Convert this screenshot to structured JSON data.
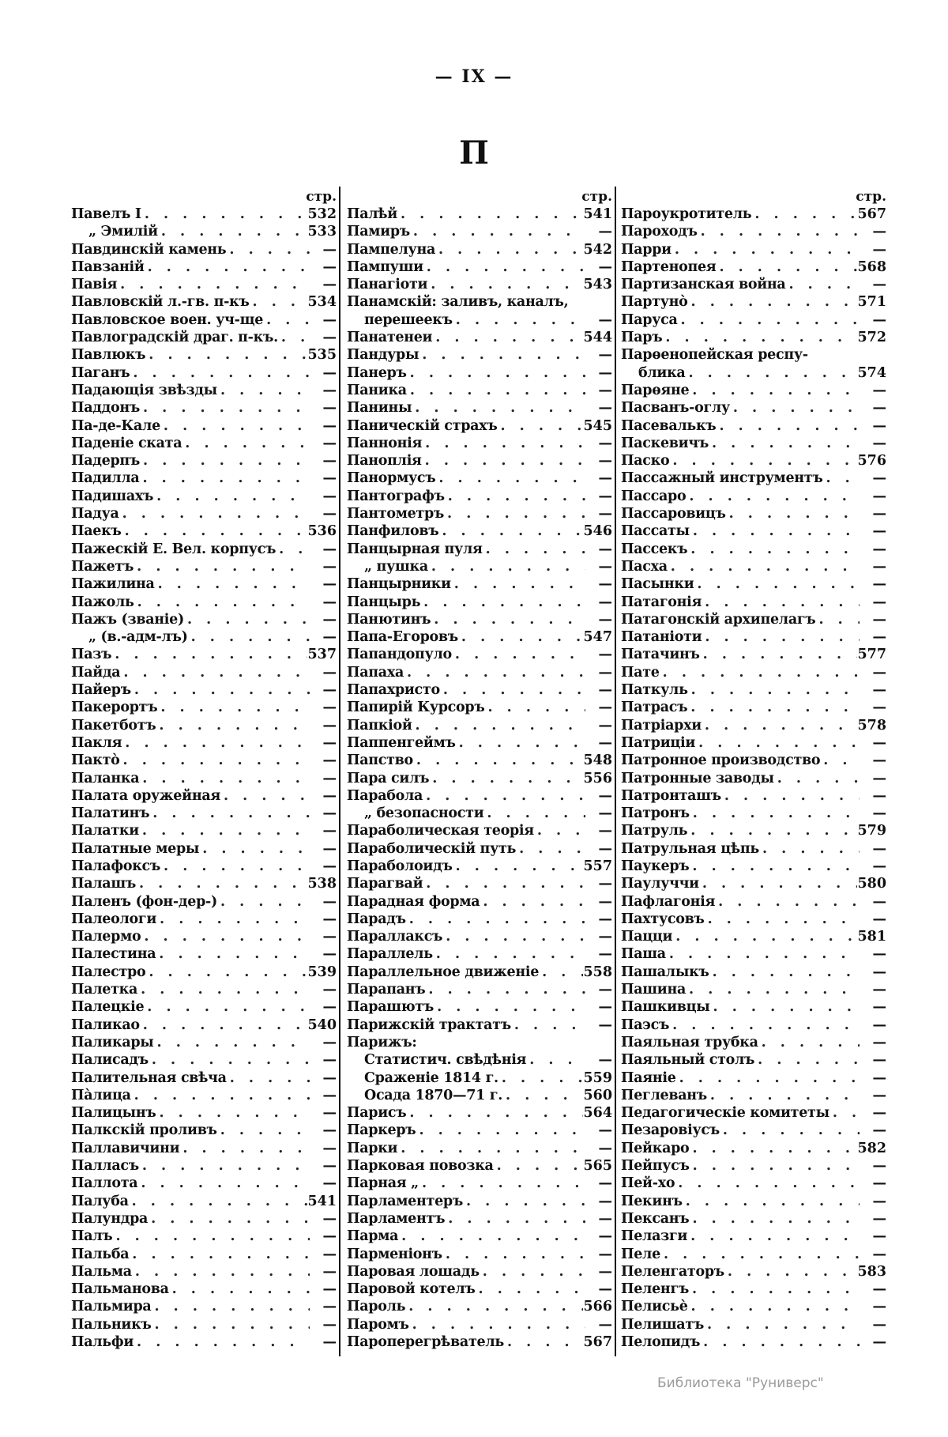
{
  "header": {
    "page_number": "— IX —",
    "section_letter": "П"
  },
  "columns": [
    {
      "label": "стр.",
      "entries": [
        {
          "name": "Павелъ I",
          "page": "532"
        },
        {
          "name": "„ Эмилій",
          "page": "533",
          "level": 1
        },
        {
          "name": "Павдинскій камень",
          "page": "—"
        },
        {
          "name": "Павзаній",
          "page": "—"
        },
        {
          "name": "Павія",
          "page": "—"
        },
        {
          "name": "Павловскій л.-гв. п-къ",
          "page": "534"
        },
        {
          "name": "Павловское воен. уч-ще",
          "page": "—"
        },
        {
          "name": "Павлоградскій драг. п-къ.",
          "page": "—"
        },
        {
          "name": "Павлюкъ",
          "page": "535"
        },
        {
          "name": "Паганъ",
          "page": "—"
        },
        {
          "name": "Падающія звѣзды",
          "page": "—"
        },
        {
          "name": "Паддонъ",
          "page": "—"
        },
        {
          "name": "Па-де-Кале",
          "page": "—"
        },
        {
          "name": "Паденіе ската",
          "page": "—"
        },
        {
          "name": "Падерпъ",
          "page": "—"
        },
        {
          "name": "Падилла",
          "page": "—"
        },
        {
          "name": "Падишахъ",
          "page": "—"
        },
        {
          "name": "Падуа",
          "page": "—"
        },
        {
          "name": "Паекъ",
          "page": "536"
        },
        {
          "name": "Пажескій Е. Вел. корпусъ",
          "page": "—"
        },
        {
          "name": "Пажетъ",
          "page": "—"
        },
        {
          "name": "Пажилина",
          "page": "—"
        },
        {
          "name": "Пажоль",
          "page": "—"
        },
        {
          "name": "Пажъ (званіе)",
          "page": "—"
        },
        {
          "name": "„ (в.-адм-лъ)",
          "page": "—",
          "level": 1
        },
        {
          "name": "Пазъ",
          "page": "537"
        },
        {
          "name": "Пайда",
          "page": "—"
        },
        {
          "name": "Пайеръ",
          "page": "—"
        },
        {
          "name": "Пакерортъ",
          "page": "—"
        },
        {
          "name": "Пакетботъ",
          "page": "—"
        },
        {
          "name": "Пакля",
          "page": "—"
        },
        {
          "name": "Пактò",
          "page": "—"
        },
        {
          "name": "Паланка",
          "page": "—"
        },
        {
          "name": "Палата оружейная",
          "page": "—"
        },
        {
          "name": "Палатинъ",
          "page": "—"
        },
        {
          "name": "Палатки",
          "page": "—"
        },
        {
          "name": "Палатные меры",
          "page": "—"
        },
        {
          "name": "Палафоксъ",
          "page": "—"
        },
        {
          "name": "Палашъ",
          "page": "538"
        },
        {
          "name": "Паленъ (фон-дер-)",
          "page": "—"
        },
        {
          "name": "Палеологи",
          "page": "—"
        },
        {
          "name": "Палермо",
          "page": "—"
        },
        {
          "name": "Палестина",
          "page": "—"
        },
        {
          "name": "Палестро",
          "page": "539"
        },
        {
          "name": "Палетка",
          "page": "—"
        },
        {
          "name": "Палецкіе",
          "page": "—"
        },
        {
          "name": "Паликао",
          "page": "540"
        },
        {
          "name": "Паликары",
          "page": "—"
        },
        {
          "name": "Палисадъ",
          "page": "—"
        },
        {
          "name": "Палительная свѣча",
          "page": "—"
        },
        {
          "name": "Пàлица",
          "page": "—"
        },
        {
          "name": "Палицынъ",
          "page": "—"
        },
        {
          "name": "Палкскій проливъ",
          "page": "—"
        },
        {
          "name": "Паллавичини",
          "page": "—"
        },
        {
          "name": "Палласъ",
          "page": "—"
        },
        {
          "name": "Паллота",
          "page": "—"
        },
        {
          "name": "Палуба",
          "page": "541"
        },
        {
          "name": "Палундра",
          "page": "—"
        },
        {
          "name": "Палъ",
          "page": "—"
        },
        {
          "name": "Пальба",
          "page": "—"
        },
        {
          "name": "Пальма",
          "page": "—"
        },
        {
          "name": "Пальманова",
          "page": "—"
        },
        {
          "name": "Пальмира",
          "page": "—"
        },
        {
          "name": "Пальникъ",
          "page": "—"
        },
        {
          "name": "Пальфи",
          "page": "—"
        }
      ]
    },
    {
      "label": "стр.",
      "entries": [
        {
          "name": "Палѣй",
          "page": "541"
        },
        {
          "name": "Памиръ",
          "page": "—"
        },
        {
          "name": "Пампелуна",
          "page": "542"
        },
        {
          "name": "Пампуши",
          "page": "—"
        },
        {
          "name": "Панагіоти",
          "page": "543"
        },
        {
          "name": "Панамскій: заливъ, каналъ,",
          "page": "",
          "cont": true
        },
        {
          "name": "перешеекъ",
          "page": "—",
          "level": 1
        },
        {
          "name": "Панатенеи",
          "page": "544"
        },
        {
          "name": "Пандуры",
          "page": "—"
        },
        {
          "name": "Панеръ",
          "page": "—"
        },
        {
          "name": "Паника",
          "page": "—"
        },
        {
          "name": "Панины",
          "page": "—"
        },
        {
          "name": "Паническій страхъ",
          "page": "545"
        },
        {
          "name": "Паннонія",
          "page": "—"
        },
        {
          "name": "Паноплія",
          "page": "—"
        },
        {
          "name": "Панормусъ",
          "page": "—"
        },
        {
          "name": "Пантографъ",
          "page": "—"
        },
        {
          "name": "Пантометръ",
          "page": "—"
        },
        {
          "name": "Панфиловъ",
          "page": "546"
        },
        {
          "name": "Панцырная пуля",
          "page": "—"
        },
        {
          "name": "„ пушка",
          "page": "—",
          "level": 1
        },
        {
          "name": "Панцырники",
          "page": "—"
        },
        {
          "name": "Панцырь",
          "page": "—"
        },
        {
          "name": "Панютинъ",
          "page": "—"
        },
        {
          "name": "Папа-Егоровъ",
          "page": "547"
        },
        {
          "name": "Папандопуло",
          "page": "—"
        },
        {
          "name": "Папаха",
          "page": "—"
        },
        {
          "name": "Папахристо",
          "page": "—"
        },
        {
          "name": "Папирій Курсоръ",
          "page": "—"
        },
        {
          "name": "Папкіой",
          "page": "—"
        },
        {
          "name": "Паппенгеймъ",
          "page": "—"
        },
        {
          "name": "Папство",
          "page": "548"
        },
        {
          "name": "Пара силъ",
          "page": "556"
        },
        {
          "name": "Парабола",
          "page": "—"
        },
        {
          "name": "„ безопасности",
          "page": "—",
          "level": 1
        },
        {
          "name": "Параболическая теорія",
          "page": "—"
        },
        {
          "name": "Параболическій путь",
          "page": "—"
        },
        {
          "name": "Параболоидъ",
          "page": "557"
        },
        {
          "name": "Парагвай",
          "page": "—"
        },
        {
          "name": "Парадная форма",
          "page": "—"
        },
        {
          "name": "Парадъ",
          "page": "—"
        },
        {
          "name": "Параллаксъ",
          "page": "—"
        },
        {
          "name": "Параллель",
          "page": "—"
        },
        {
          "name": "Параллельное движеніе",
          "page": "558"
        },
        {
          "name": "Парапанъ",
          "page": "—"
        },
        {
          "name": "Парашютъ",
          "page": "—"
        },
        {
          "name": "Парижскій трактатъ",
          "page": "—"
        },
        {
          "name": "Парижъ:",
          "page": "",
          "cont": true
        },
        {
          "name": "Статистич. свѣдѣнія",
          "page": "—",
          "level": 2
        },
        {
          "name": "Сраженіе 1814 г.",
          "page": "559",
          "level": 2
        },
        {
          "name": "Осада 1870—71 г.",
          "page": "560",
          "level": 2
        },
        {
          "name": "Парисъ",
          "page": "564"
        },
        {
          "name": "Паркеръ",
          "page": "—"
        },
        {
          "name": "Парки",
          "page": "—"
        },
        {
          "name": "Парковая повозка",
          "page": "565"
        },
        {
          "name": "Парная „",
          "page": "—"
        },
        {
          "name": "Парламентеръ",
          "page": "—"
        },
        {
          "name": "Парламентъ",
          "page": "—"
        },
        {
          "name": "Парма",
          "page": "—"
        },
        {
          "name": "Парменіонъ",
          "page": "—"
        },
        {
          "name": "Паровая лошадь",
          "page": "—"
        },
        {
          "name": "Паровой котелъ",
          "page": "—"
        },
        {
          "name": "Пароль",
          "page": "566"
        },
        {
          "name": "Паромъ",
          "page": "—"
        },
        {
          "name": "Пароперегрѣватель",
          "page": "567"
        }
      ]
    },
    {
      "label": "стр.",
      "entries": [
        {
          "name": "Пароукротитель",
          "page": "567"
        },
        {
          "name": "Пароходъ",
          "page": "—"
        },
        {
          "name": "Парри",
          "page": "—"
        },
        {
          "name": "Партенопея",
          "page": "568"
        },
        {
          "name": "Партизанская война",
          "page": "—"
        },
        {
          "name": "Партунò",
          "page": "571"
        },
        {
          "name": "Паруса",
          "page": "—"
        },
        {
          "name": "Паръ",
          "page": "572"
        },
        {
          "name": "Парѳенопейская респу-",
          "page": "",
          "cont": true
        },
        {
          "name": "блика",
          "page": "574",
          "level": 1
        },
        {
          "name": "Парѳяне",
          "page": "—"
        },
        {
          "name": "Пасванъ-оглу",
          "page": "—"
        },
        {
          "name": "Пасевалькъ",
          "page": "—"
        },
        {
          "name": "Паскевичъ",
          "page": "—"
        },
        {
          "name": "Паско",
          "page": "576"
        },
        {
          "name": "Пассажный инструментъ",
          "page": "—"
        },
        {
          "name": "Пассаро",
          "page": "—"
        },
        {
          "name": "Пассаровицъ",
          "page": "—"
        },
        {
          "name": "Пассаты",
          "page": "—"
        },
        {
          "name": "Пассекъ",
          "page": "—"
        },
        {
          "name": "Пасха",
          "page": "—"
        },
        {
          "name": "Пасынки",
          "page": "—"
        },
        {
          "name": "Патагонія",
          "page": "—"
        },
        {
          "name": "Патагонскій архипелагъ",
          "page": "—"
        },
        {
          "name": "Патаніоти",
          "page": "—"
        },
        {
          "name": "Патачинъ",
          "page": "577"
        },
        {
          "name": "Пате",
          "page": "—"
        },
        {
          "name": "Паткуль",
          "page": "—"
        },
        {
          "name": "Патрасъ",
          "page": "—"
        },
        {
          "name": "Патріархи",
          "page": "578"
        },
        {
          "name": "Патриціи",
          "page": "—"
        },
        {
          "name": "Патронное производство",
          "page": "—"
        },
        {
          "name": "Патронные заводы",
          "page": "—"
        },
        {
          "name": "Патронташъ",
          "page": "—"
        },
        {
          "name": "Патронъ",
          "page": "—"
        },
        {
          "name": "Патруль",
          "page": "579"
        },
        {
          "name": "Патрульная цѣпь",
          "page": "—"
        },
        {
          "name": "Паукеръ",
          "page": "—"
        },
        {
          "name": "Паулуччи",
          "page": "580"
        },
        {
          "name": "Пафлагонія",
          "page": "—"
        },
        {
          "name": "Пахтусовъ",
          "page": "—"
        },
        {
          "name": "Пацци",
          "page": "581"
        },
        {
          "name": "Паша",
          "page": "—"
        },
        {
          "name": "Пашалыкъ",
          "page": "—"
        },
        {
          "name": "Пашина",
          "page": "—"
        },
        {
          "name": "Пашкивцы",
          "page": "—"
        },
        {
          "name": "Паэсъ",
          "page": "—"
        },
        {
          "name": "Паяльная трубка",
          "page": "—"
        },
        {
          "name": "Паяльный столъ",
          "page": "—"
        },
        {
          "name": "Паяніе",
          "page": "—"
        },
        {
          "name": "Пеглеванъ",
          "page": "—"
        },
        {
          "name": "Педагогическіе комитеты",
          "page": "—"
        },
        {
          "name": "Пезаровіусъ",
          "page": "—"
        },
        {
          "name": "Пейкаро",
          "page": "582"
        },
        {
          "name": "Пейпусъ",
          "page": "—"
        },
        {
          "name": "Пей-хо",
          "page": "—"
        },
        {
          "name": "Пекинъ",
          "page": "—"
        },
        {
          "name": "Пексанъ",
          "page": "—"
        },
        {
          "name": "Пелазги",
          "page": "—"
        },
        {
          "name": "Пеле",
          "page": "—"
        },
        {
          "name": "Пеленгаторъ",
          "page": "583"
        },
        {
          "name": "Пеленгъ",
          "page": "—"
        },
        {
          "name": "Пелисьè",
          "page": "—"
        },
        {
          "name": "Пелишатъ",
          "page": "—"
        },
        {
          "name": "Пелопидъ",
          "page": "—"
        }
      ]
    }
  ],
  "watermark": "Библиотека \"Руниверс\""
}
